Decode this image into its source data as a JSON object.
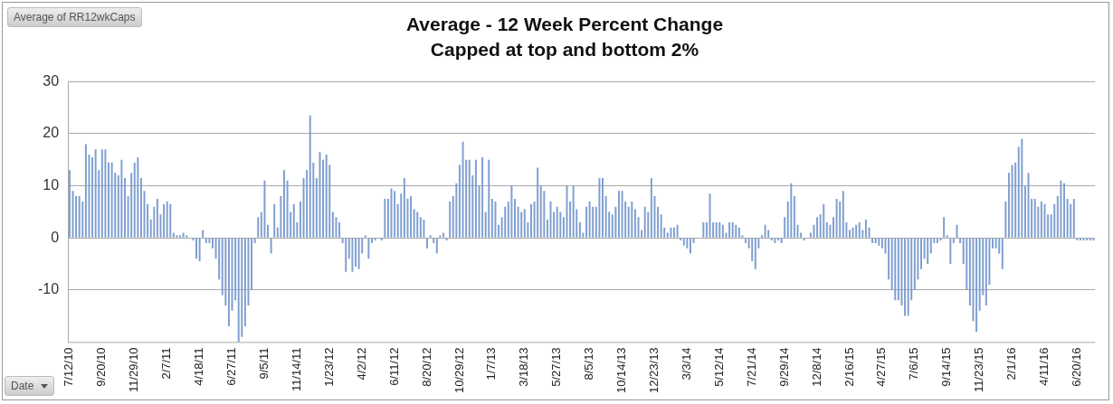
{
  "chart_data": {
    "type": "bar",
    "title": "Average - 12 Week Percent Change",
    "subtitle": "Capped at top and bottom 2%",
    "annotations": [
      "Average of RR12wkCaps",
      "Date"
    ],
    "categories": [
      "7/12/10",
      null,
      null,
      null,
      null,
      null,
      null,
      null,
      null,
      null,
      "9/20/10",
      null,
      null,
      null,
      null,
      null,
      null,
      null,
      null,
      null,
      "11/29/10",
      null,
      null,
      null,
      null,
      null,
      null,
      null,
      null,
      null,
      "2/7/11",
      null,
      null,
      null,
      null,
      null,
      null,
      null,
      null,
      null,
      "4/18/11",
      null,
      null,
      null,
      null,
      null,
      null,
      null,
      null,
      null,
      "6/27/11",
      null,
      null,
      null,
      null,
      null,
      null,
      null,
      null,
      null,
      "9/5/11",
      null,
      null,
      null,
      null,
      null,
      null,
      null,
      null,
      null,
      "11/14/11",
      null,
      null,
      null,
      null,
      null,
      null,
      null,
      null,
      null,
      "1/23/12",
      null,
      null,
      null,
      null,
      null,
      null,
      null,
      null,
      null,
      "4/2/12",
      null,
      null,
      null,
      null,
      null,
      null,
      null,
      null,
      null,
      "6/11/12",
      null,
      null,
      null,
      null,
      null,
      null,
      null,
      null,
      null,
      "8/20/12",
      null,
      null,
      null,
      null,
      null,
      null,
      null,
      null,
      null,
      "10/29/12",
      null,
      null,
      null,
      null,
      null,
      null,
      null,
      null,
      null,
      "1/7/13",
      null,
      null,
      null,
      null,
      null,
      null,
      null,
      null,
      null,
      "3/18/13",
      null,
      null,
      null,
      null,
      null,
      null,
      null,
      null,
      null,
      "5/27/13",
      null,
      null,
      null,
      null,
      null,
      null,
      null,
      null,
      null,
      "8/5/13",
      null,
      null,
      null,
      null,
      null,
      null,
      null,
      null,
      null,
      "10/14/13",
      null,
      null,
      null,
      null,
      null,
      null,
      null,
      null,
      null,
      "12/23/13",
      null,
      null,
      null,
      null,
      null,
      null,
      null,
      null,
      null,
      "3/3/14",
      null,
      null,
      null,
      null,
      null,
      null,
      null,
      null,
      null,
      "5/12/14",
      null,
      null,
      null,
      null,
      null,
      null,
      null,
      null,
      null,
      "7/21/14",
      null,
      null,
      null,
      null,
      null,
      null,
      null,
      null,
      null,
      "9/29/14",
      null,
      null,
      null,
      null,
      null,
      null,
      null,
      null,
      null,
      "12/8/14",
      null,
      null,
      null,
      null,
      null,
      null,
      null,
      null,
      null,
      "2/16/15",
      null,
      null,
      null,
      null,
      null,
      null,
      null,
      null,
      null,
      "4/27/15",
      null,
      null,
      null,
      null,
      null,
      null,
      null,
      null,
      null,
      "7/6/15",
      null,
      null,
      null,
      null,
      null,
      null,
      null,
      null,
      null,
      "9/14/15",
      null,
      null,
      null,
      null,
      null,
      null,
      null,
      null,
      null,
      "11/23/15",
      null,
      null,
      null,
      null,
      null,
      null,
      null,
      null,
      null,
      "2/1/16",
      null,
      null,
      null,
      null,
      null,
      null,
      null,
      null,
      null,
      "4/11/16",
      null,
      null,
      null,
      null,
      null,
      null,
      null,
      null,
      null,
      "6/20/16",
      null,
      null,
      null,
      null,
      null
    ],
    "values": [
      13,
      9,
      8,
      8,
      7,
      18,
      16,
      15.5,
      17,
      13,
      17,
      17,
      14.5,
      14.5,
      12.5,
      12,
      15,
      11.5,
      8,
      12.5,
      14.5,
      15.5,
      11.5,
      9,
      6.5,
      3.5,
      6,
      7.5,
      4.5,
      6.5,
      7,
      6.5,
      1,
      0.5,
      0.5,
      1,
      0.5,
      0,
      -0.5,
      -4,
      -4.5,
      1.5,
      -1,
      -1,
      -2,
      -4,
      -8,
      -11,
      -13,
      -17,
      -14,
      -12,
      -20,
      -19,
      -17,
      -13,
      -10,
      -1,
      4,
      5,
      11,
      2.5,
      -3,
      6.5,
      2,
      8,
      13,
      11,
      5,
      6.5,
      3,
      7,
      11.5,
      13,
      23.5,
      14.5,
      11.5,
      16.5,
      15,
      16,
      14,
      5,
      4,
      3,
      -1,
      -6.5,
      -4,
      -6.5,
      -5.5,
      -6,
      -3,
      0.5,
      -4,
      -1,
      -0.5,
      0,
      -0.5,
      7.5,
      7.5,
      9.5,
      9,
      6.5,
      8.5,
      11.5,
      7.5,
      8,
      5.5,
      5,
      4,
      3.5,
      -2,
      0.5,
      -1,
      -3,
      0.5,
      1,
      -0.5,
      7,
      8,
      10.5,
      14,
      18.5,
      15,
      15,
      12,
      15,
      10,
      15.5,
      5,
      15,
      7.5,
      7,
      2.5,
      4,
      6,
      7,
      10,
      7.5,
      6,
      5,
      5.5,
      3,
      6.5,
      7,
      13.5,
      10,
      9,
      3.5,
      7,
      5,
      6,
      5,
      4,
      10,
      7,
      10,
      5.5,
      3,
      1,
      6,
      7,
      6,
      6,
      11.5,
      11.5,
      8,
      5,
      4.5,
      6,
      9,
      9,
      7,
      6,
      7,
      5.5,
      4,
      1.5,
      6,
      5,
      11.5,
      8,
      6,
      4.5,
      2,
      1,
      2,
      2,
      2.5,
      -0.5,
      -1.5,
      -2,
      -3,
      -1,
      0,
      0,
      3,
      3,
      8.5,
      3,
      3,
      3,
      2.5,
      1,
      3,
      3,
      2.5,
      2,
      0.5,
      -1,
      -2,
      -4.5,
      -6,
      -2,
      0.5,
      2.5,
      1.5,
      -0.5,
      -1,
      -0.5,
      -1,
      4,
      7,
      10.5,
      8,
      2.5,
      1,
      -0.5,
      0,
      1,
      2.5,
      4,
      4.5,
      6.5,
      3,
      2.5,
      4,
      7.5,
      7,
      9,
      3,
      1.5,
      2,
      2.5,
      3,
      1.5,
      3.5,
      2,
      -1,
      -1,
      -1.5,
      -2,
      -3,
      -8,
      -10,
      -12,
      -12,
      -13,
      -15,
      -15,
      -12,
      -10,
      -8,
      -6,
      -4,
      -5,
      -3,
      -1,
      -1,
      -0.5,
      4,
      0.5,
      -5,
      -1,
      2.5,
      -1,
      -5,
      -10,
      -13,
      -16,
      -18,
      -14,
      -11,
      -13,
      -9,
      -2,
      -2,
      -3,
      -6,
      7,
      12.5,
      14,
      14.5,
      17.5,
      19,
      10,
      12.5,
      7.5,
      7.5,
      6,
      7,
      6.5,
      4.5,
      4.5,
      6.5,
      8,
      11,
      10.5,
      7.5,
      6.5,
      7.5,
      -0.5,
      -0.5,
      -0.5,
      -0.5,
      -0.5,
      -0.5
    ],
    "color": "#7f9fd0",
    "ylim": [
      -20,
      30
    ],
    "yticks": [
      -10,
      0,
      10,
      20,
      30
    ],
    "grid": "y"
  }
}
